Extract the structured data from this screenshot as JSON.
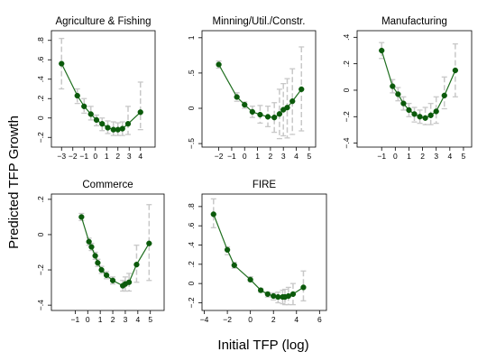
{
  "figure": {
    "ylabel": "Predicted TFP Growth",
    "xlabel": "Initial TFP (log)"
  },
  "colors": {
    "line": "#1e6e1e",
    "marker": "#0b5a0b",
    "errorbar": "#c8c8c8",
    "frame": "#000000"
  },
  "chart_data": [
    {
      "type": "line",
      "title": "Agriculture & Fishing",
      "xlim": [
        -3.9,
        5.3
      ],
      "ylim": [
        -0.3,
        0.9
      ],
      "xticks": [
        -3,
        -2,
        -1,
        0,
        1,
        2,
        3,
        4
      ],
      "xtick_labels": [
        "−3",
        "−2",
        "−1",
        "0",
        "1",
        "2",
        "3",
        "4"
      ],
      "yticks": [
        -0.2,
        0,
        0.2,
        0.4,
        0.6,
        0.8
      ],
      "ytick_labels": [
        "−.2",
        "0",
        ".2",
        ".4",
        ".6",
        ".8"
      ],
      "x": [
        -3.0,
        -1.6,
        -1.0,
        -0.4,
        0.1,
        0.6,
        1.1,
        1.6,
        2.0,
        2.4,
        2.9,
        4.0
      ],
      "y": [
        0.56,
        0.23,
        0.12,
        0.04,
        -0.02,
        -0.06,
        -0.1,
        -0.12,
        -0.12,
        -0.11,
        -0.06,
        0.06
      ],
      "upper": [
        0.82,
        0.3,
        0.2,
        0.12,
        0.03,
        0.0,
        -0.03,
        -0.04,
        -0.05,
        -0.04,
        0.12,
        0.37
      ],
      "lower": [
        0.3,
        0.15,
        0.05,
        -0.02,
        -0.08,
        -0.13,
        -0.16,
        -0.18,
        -0.18,
        -0.18,
        -0.17,
        -0.12
      ]
    },
    {
      "type": "line",
      "title": "Minning/Util./Constr.",
      "xlim": [
        -3.3,
        5.5
      ],
      "ylim": [
        -0.55,
        1.1
      ],
      "xticks": [
        -2,
        -1,
        0,
        1,
        2,
        3,
        4,
        5
      ],
      "xtick_labels": [
        "−2",
        "−1",
        "0",
        "1",
        "2",
        "3",
        "4",
        "5"
      ],
      "yticks": [
        -0.5,
        0,
        0.5,
        1
      ],
      "ytick_labels": [
        "−.5",
        "0",
        ".5",
        "1"
      ],
      "x": [
        -2.0,
        -0.6,
        0.0,
        0.6,
        1.2,
        1.8,
        2.3,
        2.7,
        3.0,
        3.3,
        3.7,
        4.4
      ],
      "y": [
        0.62,
        0.16,
        0.05,
        -0.05,
        -0.09,
        -0.12,
        -0.13,
        -0.08,
        -0.02,
        0.01,
        0.1,
        0.27
      ],
      "upper": [
        0.67,
        0.22,
        0.09,
        0.03,
        0.04,
        0.03,
        0.08,
        0.27,
        0.35,
        0.42,
        0.56,
        0.87
      ],
      "lower": [
        0.57,
        0.1,
        0.0,
        -0.13,
        -0.21,
        -0.26,
        -0.34,
        -0.43,
        -0.39,
        -0.42,
        -0.37,
        -0.32
      ]
    },
    {
      "type": "line",
      "title": "Manufacturing",
      "xlim": [
        -2.8,
        5.6
      ],
      "ylim": [
        -0.43,
        0.45
      ],
      "xticks": [
        -1,
        0,
        1,
        2,
        3,
        4,
        5
      ],
      "xtick_labels": [
        "−1",
        "0",
        "1",
        "2",
        "3",
        "4",
        "5"
      ],
      "yticks": [
        -0.4,
        -0.2,
        0,
        0.2,
        0.4
      ],
      "ytick_labels": [
        "−.4",
        "−.2",
        "0",
        ".2",
        ".4"
      ],
      "x": [
        -1.0,
        -0.2,
        0.2,
        0.6,
        1.0,
        1.4,
        1.8,
        2.2,
        2.6,
        3.0,
        3.6,
        4.4
      ],
      "y": [
        0.3,
        0.03,
        -0.03,
        -0.1,
        -0.15,
        -0.18,
        -0.2,
        -0.21,
        -0.19,
        -0.16,
        -0.04,
        0.15
      ],
      "upper": [
        0.36,
        0.08,
        0.02,
        -0.05,
        -0.1,
        -0.13,
        -0.15,
        -0.13,
        -0.1,
        -0.05,
        0.1,
        0.35
      ],
      "lower": [
        0.24,
        -0.02,
        -0.08,
        -0.15,
        -0.2,
        -0.24,
        -0.25,
        -0.26,
        -0.26,
        -0.25,
        -0.14,
        -0.05
      ]
    },
    {
      "type": "line",
      "title": "Commerce",
      "xlim": [
        -2.9,
        6.1
      ],
      "ylim": [
        -0.43,
        0.23
      ],
      "xticks": [
        -1,
        0,
        1,
        2,
        3,
        4,
        5
      ],
      "xtick_labels": [
        "−1",
        "0",
        "1",
        "2",
        "3",
        "4",
        "5"
      ],
      "yticks": [
        -0.4,
        -0.2,
        0,
        0.2
      ],
      "ytick_labels": [
        "−.4",
        "−.2",
        "0",
        ".2"
      ],
      "x": [
        -0.5,
        0.1,
        0.3,
        0.6,
        0.8,
        1.1,
        1.5,
        2.0,
        2.8,
        3.0,
        3.3,
        3.9,
        4.9
      ],
      "y": [
        0.1,
        -0.04,
        -0.07,
        -0.12,
        -0.16,
        -0.2,
        -0.23,
        -0.26,
        -0.29,
        -0.28,
        -0.27,
        -0.17,
        -0.05
      ],
      "upper": [
        0.12,
        -0.02,
        -0.05,
        -0.1,
        -0.14,
        -0.18,
        -0.21,
        -0.24,
        -0.26,
        -0.24,
        -0.22,
        -0.06,
        0.17
      ],
      "lower": [
        0.08,
        -0.06,
        -0.09,
        -0.14,
        -0.18,
        -0.22,
        -0.25,
        -0.28,
        -0.32,
        -0.32,
        -0.32,
        -0.27,
        -0.26
      ]
    },
    {
      "type": "line",
      "title": "FIRE",
      "xlim": [
        -4.2,
        6.6
      ],
      "ylim": [
        -0.28,
        0.93
      ],
      "xticks": [
        -4,
        -2,
        0,
        2,
        4,
        6
      ],
      "xtick_labels": [
        "−4",
        "−2",
        "0",
        "2",
        "4",
        "6"
      ],
      "yticks": [
        -0.2,
        0,
        0.2,
        0.4,
        0.6,
        0.8
      ],
      "ytick_labels": [
        "−.2",
        "0",
        ".2",
        ".4",
        ".6",
        ".8"
      ],
      "x": [
        -3.2,
        -2.0,
        -1.4,
        0.0,
        0.9,
        1.5,
        2.0,
        2.4,
        2.8,
        3.0,
        3.3,
        3.7,
        4.6
      ],
      "y": [
        0.72,
        0.35,
        0.19,
        0.04,
        -0.07,
        -0.11,
        -0.13,
        -0.14,
        -0.14,
        -0.14,
        -0.13,
        -0.11,
        -0.04
      ],
      "upper": [
        0.88,
        0.38,
        0.22,
        0.07,
        -0.05,
        -0.09,
        -0.1,
        -0.09,
        -0.07,
        -0.06,
        -0.04,
        0.0,
        0.13
      ],
      "lower": [
        0.58,
        0.3,
        0.16,
        0.02,
        -0.09,
        -0.14,
        -0.17,
        -0.2,
        -0.21,
        -0.22,
        -0.22,
        -0.22,
        -0.18
      ]
    }
  ]
}
